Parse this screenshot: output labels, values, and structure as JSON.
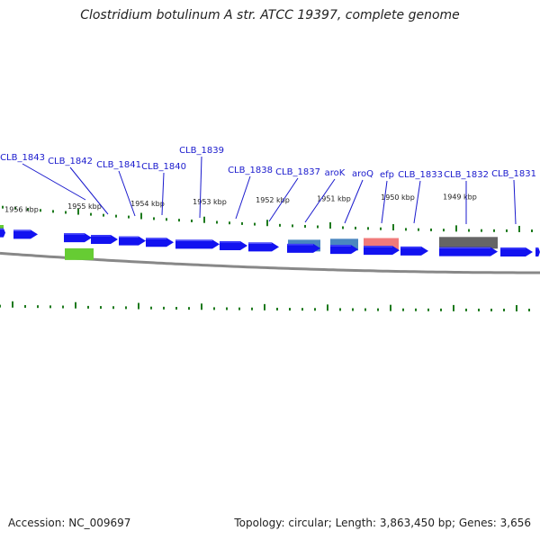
{
  "title": "Clostridium botulinum A str. ATCC 19397, complete genome",
  "footer": {
    "accession": "Accession: NC_009697",
    "topology": "Topology: circular; Length: 3,863,450 bp; Genes: 3,656"
  },
  "colors": {
    "gene": "#1212f0",
    "backbone": "#888888",
    "tick": "#1e7a1e",
    "label": "#1a1acd",
    "feature_green": "#66cc33",
    "feature_steelblue": "#4a86c0",
    "feature_pink": "#f07a7a",
    "feature_gray": "#666666"
  },
  "scale_labels": [
    "1956 kbp",
    "1955 kbp",
    "1954 kbp",
    "1953 kbp",
    "1952 kbp",
    "1951 kbp",
    "1950 kbp",
    "1949 kbp"
  ],
  "gene_labels": [
    "CLB_1843",
    "CLB_1842",
    "CLB_1841",
    "CLB_1840",
    "CLB_1839",
    "CLB_1838",
    "CLB_1837",
    "aroK",
    "aroQ",
    "efp",
    "CLB_1833",
    "CLB_1832",
    "CLB_1831"
  ]
}
